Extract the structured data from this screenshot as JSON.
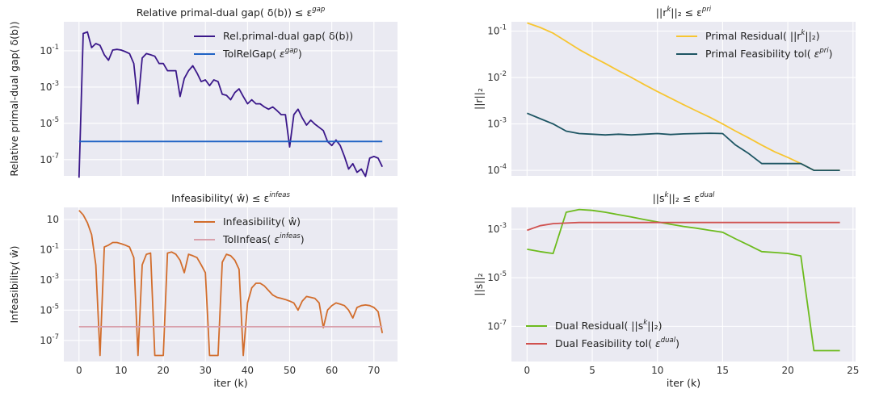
{
  "chart_data": [
    {
      "type": "line",
      "panel": "top-left",
      "title_main": "Relative primal-dual gap( δ(b))",
      "title_rel": "≤ ε",
      "title_sup": "gap",
      "xlabel": "",
      "ylabel": "Relative primal-dual gap( δ(b))",
      "scale_y": "log",
      "xlim": [
        -3.6,
        75.6
      ],
      "ylim_exp": [
        -7.9,
        0.6
      ],
      "x_ticks": [
        0,
        10,
        20,
        30,
        40,
        50,
        60,
        70
      ],
      "show_x_tick_labels": false,
      "y_ticks_exp": [
        -7,
        -5,
        -3,
        -1
      ],
      "y_tick_labels": [
        "10",
        "10",
        "10",
        "10"
      ],
      "y_tick_sups": [
        "-7",
        "-5",
        "-3",
        "-1"
      ],
      "legend": "top-right",
      "grid": true,
      "series": [
        {
          "name_main": "Rel.primal-dual gap( δ(b))",
          "name_sup": "",
          "name_tail": "",
          "color": "#3b188a",
          "x": [
            0,
            1,
            2,
            3,
            4,
            5,
            6,
            7,
            8,
            9,
            10,
            11,
            12,
            13,
            14,
            15,
            16,
            17,
            18,
            19,
            20,
            21,
            22,
            23,
            24,
            25,
            26,
            27,
            28,
            29,
            30,
            31,
            32,
            33,
            34,
            35,
            36,
            37,
            38,
            39,
            40,
            41,
            42,
            43,
            44,
            45,
            46,
            47,
            48,
            49,
            50,
            51,
            52,
            53,
            54,
            55,
            56,
            57,
            58,
            59,
            60,
            61,
            62,
            63,
            64,
            65,
            66,
            67,
            68,
            69,
            70,
            71,
            72
          ],
          "y": [
            1e-08,
            0.9,
            1.1,
            0.15,
            0.25,
            0.2,
            0.06,
            0.03,
            0.11,
            0.12,
            0.11,
            0.09,
            0.07,
            0.02,
            0.00012,
            0.04,
            0.07,
            0.06,
            0.05,
            0.02,
            0.02,
            0.008,
            0.008,
            0.008,
            0.0003,
            0.003,
            0.008,
            0.015,
            0.006,
            0.002,
            0.0025,
            0.0012,
            0.0025,
            0.002,
            0.0004,
            0.00035,
            0.0002,
            0.0005,
            0.0008,
            0.0003,
            0.00012,
            0.0002,
            0.00012,
            0.00012,
            8e-05,
            6e-05,
            8e-05,
            5e-05,
            3e-05,
            3e-05,
            5e-07,
            3e-05,
            6e-05,
            2e-05,
            8e-06,
            1.5e-05,
            9e-06,
            6e-06,
            4e-06,
            1e-06,
            6e-07,
            1.2e-06,
            6e-07,
            1.5e-07,
            3e-08,
            6e-08,
            2e-08,
            3e-08,
            1.2e-08,
            1.2e-07,
            1.5e-07,
            1.2e-07,
            4e-08
          ]
        },
        {
          "name_main": "TolRelGap(",
          "name_sup": "gap",
          "name_tail": ")",
          "color": "#1f62c4",
          "x": [
            0,
            72
          ],
          "y": [
            1e-06,
            1e-06
          ]
        }
      ]
    },
    {
      "type": "line",
      "panel": "top-right",
      "title_main": "||r",
      "title_sup": "k",
      "title_rel": "||₂ ≤ ε",
      "title_sup2": "pri",
      "xlabel": "",
      "ylabel": "||r||₂",
      "scale_y": "log",
      "xlim": [
        -1.2,
        25.2
      ],
      "ylim_exp": [
        -4.12,
        -0.8
      ],
      "x_ticks": [
        0,
        5,
        10,
        15,
        20,
        25
      ],
      "show_x_tick_labels": false,
      "y_ticks_exp": [
        -4,
        -3,
        -2,
        -1
      ],
      "y_tick_labels": [
        "10",
        "10",
        "10",
        "10"
      ],
      "y_tick_sups": [
        "-4",
        "-3",
        "-2",
        "-1"
      ],
      "legend": "top-right",
      "grid": true,
      "series": [
        {
          "name_main": "Primal Residual( ||r",
          "name_sup": "k",
          "name_tail": "||₂)",
          "color": "#f7c531",
          "x": [
            0,
            1,
            2,
            3,
            4,
            5,
            6,
            7,
            8,
            9,
            10,
            11,
            12,
            13,
            14,
            15,
            16,
            17,
            18,
            19,
            20,
            21,
            22,
            23,
            24
          ],
          "y": [
            0.15,
            0.12,
            0.09,
            0.06,
            0.04,
            0.028,
            0.02,
            0.014,
            0.01,
            0.007,
            0.005,
            0.0036,
            0.0026,
            0.0019,
            0.0014,
            0.001,
            0.0007,
            0.0005,
            0.00035,
            0.00025,
            0.00019,
            0.00014,
            0.0001,
            0.0001,
            0.0001
          ]
        },
        {
          "name_main": "Primal Feasibility tol(",
          "name_sup": "pri",
          "name_tail": ")",
          "color": "#1d5563",
          "x": [
            0,
            1,
            2,
            3,
            4,
            5,
            6,
            7,
            8,
            9,
            10,
            11,
            12,
            13,
            14,
            15,
            16,
            17,
            18,
            19,
            20,
            21,
            22,
            23,
            24
          ],
          "y": [
            0.0017,
            0.0013,
            0.001,
            0.0007,
            0.00062,
            0.0006,
            0.00058,
            0.0006,
            0.00058,
            0.0006,
            0.00062,
            0.00059,
            0.00061,
            0.00062,
            0.00063,
            0.00062,
            0.00035,
            0.00023,
            0.00014,
            0.00014,
            0.00014,
            0.00014,
            0.0001,
            0.0001,
            0.0001
          ]
        }
      ]
    },
    {
      "type": "line",
      "panel": "bottom-left",
      "title_main": "Infeasibility( ŵ)",
      "title_rel": "≤ ε",
      "title_sup": "infeas",
      "xlabel": "iter (k)",
      "ylabel": "Infeasibility( ŵ)",
      "scale_y": "log",
      "xlim": [
        -3.6,
        75.6
      ],
      "ylim_exp": [
        -8.4,
        1.8
      ],
      "x_ticks": [
        0,
        10,
        20,
        30,
        40,
        50,
        60,
        70
      ],
      "x_tick_labels": [
        "0",
        "10",
        "20",
        "30",
        "40",
        "50",
        "60",
        "70"
      ],
      "show_x_tick_labels": true,
      "y_ticks_exp": [
        -7,
        -5,
        -3,
        -1,
        1
      ],
      "y_tick_labels": [
        "10",
        "10",
        "10",
        "10",
        "10"
      ],
      "y_tick_sups": [
        "-7",
        "-5",
        "-3",
        "-1",
        ""
      ],
      "legend": "top-right",
      "grid": true,
      "series": [
        {
          "name_main": "Infeasibility( ŵ)",
          "name_sup": "",
          "name_tail": "",
          "color": "#d26d2c",
          "x": [
            0,
            1,
            2,
            3,
            4,
            5,
            6,
            7,
            8,
            9,
            10,
            11,
            12,
            13,
            14,
            15,
            16,
            17,
            18,
            19,
            20,
            21,
            22,
            23,
            24,
            25,
            26,
            27,
            28,
            29,
            30,
            31,
            32,
            33,
            34,
            35,
            36,
            37,
            38,
            39,
            40,
            41,
            42,
            43,
            44,
            45,
            46,
            47,
            48,
            49,
            50,
            51,
            52,
            53,
            54,
            55,
            56,
            57,
            58,
            59,
            60,
            61,
            62,
            63,
            64,
            65,
            66,
            67,
            68,
            69,
            70,
            71,
            72
          ],
          "y": [
            40,
            20,
            6,
            1,
            0.01,
            1e-08,
            0.15,
            0.2,
            0.3,
            0.3,
            0.25,
            0.2,
            0.15,
            0.03,
            1e-08,
            0.01,
            0.05,
            0.06,
            1e-08,
            1e-08,
            1e-08,
            0.06,
            0.07,
            0.05,
            0.02,
            0.003,
            0.05,
            0.04,
            0.03,
            0.01,
            0.003,
            1e-08,
            1e-08,
            1e-08,
            0.015,
            0.05,
            0.04,
            0.02,
            0.005,
            1e-08,
            3e-05,
            0.0003,
            0.0006,
            0.0006,
            0.0004,
            0.0002,
            0.0001,
            7e-05,
            6e-05,
            5e-05,
            4e-05,
            3e-05,
            1e-05,
            4e-05,
            8e-05,
            7e-05,
            6e-05,
            3e-05,
            7e-07,
            1e-05,
            2e-05,
            3e-05,
            2.5e-05,
            2e-05,
            1e-05,
            3e-06,
            1.5e-05,
            2e-05,
            2.2e-05,
            2e-05,
            1.5e-05,
            8e-06,
            3e-07
          ]
        },
        {
          "name_main": "TolInfeas(",
          "name_sup": "infeas",
          "name_tail": ")",
          "color": "#d9a0ab",
          "x": [
            0,
            72
          ],
          "y": [
            8e-07,
            8e-07
          ]
        }
      ]
    },
    {
      "type": "line",
      "panel": "bottom-right",
      "title_main": "||s",
      "title_sup": "k",
      "title_rel": "||₂ ≤ ε",
      "title_sup2": "dual",
      "xlabel": "iter (k)",
      "ylabel": "||s||₂",
      "scale_y": "log",
      "xlim": [
        -1.2,
        25.2
      ],
      "ylim_exp": [
        -8.45,
        -2.1
      ],
      "x_ticks": [
        0,
        5,
        10,
        15,
        20,
        25
      ],
      "x_tick_labels": [
        "0",
        "5",
        "10",
        "15",
        "20",
        "25"
      ],
      "show_x_tick_labels": true,
      "y_ticks_exp": [
        -7,
        -5,
        -3
      ],
      "y_tick_labels": [
        "10",
        "10",
        "10"
      ],
      "y_tick_sups": [
        "-7",
        "-5",
        "-3"
      ],
      "legend": "bottom-left",
      "grid": true,
      "series": [
        {
          "name_main": "Dual Residual( ||s",
          "name_sup": "k",
          "name_tail": "||₂)",
          "color": "#6dbb1e",
          "x": [
            0,
            1,
            2,
            3,
            4,
            5,
            6,
            7,
            8,
            9,
            10,
            11,
            12,
            13,
            14,
            15,
            16,
            17,
            18,
            19,
            20,
            21,
            22,
            23,
            24
          ],
          "y": [
            0.00015,
            0.00012,
            0.0001,
            0.005,
            0.0065,
            0.006,
            0.005,
            0.004,
            0.0032,
            0.0025,
            0.002,
            0.0016,
            0.0013,
            0.0011,
            0.0009,
            0.00075,
            0.0004,
            0.00022,
            0.00012,
            0.00011,
            0.0001,
            8e-05,
            1e-08,
            1e-08,
            1e-08
          ]
        },
        {
          "name_main": "Dual Feasibility tol(",
          "name_sup": "dual",
          "name_tail": ")",
          "color": "#d0504e",
          "x": [
            0,
            1,
            2,
            3,
            4,
            5,
            6,
            7,
            8,
            9,
            10,
            11,
            12,
            13,
            14,
            15,
            16,
            17,
            18,
            19,
            20,
            21,
            22,
            23,
            24
          ],
          "y": [
            0.0009,
            0.0014,
            0.0017,
            0.0018,
            0.0019,
            0.0019,
            0.0019,
            0.0019,
            0.0019,
            0.0019,
            0.0019,
            0.0019,
            0.0019,
            0.0019,
            0.0019,
            0.0019,
            0.0019,
            0.0019,
            0.0019,
            0.0019,
            0.0019,
            0.0019,
            0.0019,
            0.0019,
            0.0019
          ]
        }
      ]
    }
  ]
}
